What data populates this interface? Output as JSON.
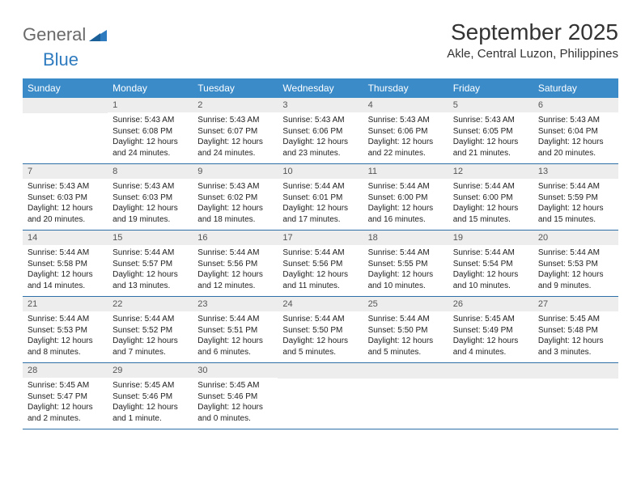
{
  "logo": {
    "general": "General",
    "blue": "Blue"
  },
  "title": "September 2025",
  "location": "Akle, Central Luzon, Philippines",
  "colors": {
    "header_bg": "#3b8bc9",
    "header_text": "#ffffff",
    "daynum_bg": "#ededed",
    "week_border": "#2f6fa8",
    "logo_gray": "#6a6a6a",
    "logo_blue": "#2f7bbf"
  },
  "day_names": [
    "Sunday",
    "Monday",
    "Tuesday",
    "Wednesday",
    "Thursday",
    "Friday",
    "Saturday"
  ],
  "weeks": [
    [
      {
        "empty": true
      },
      {
        "day": "1",
        "sunrise": "Sunrise: 5:43 AM",
        "sunset": "Sunset: 6:08 PM",
        "dl1": "Daylight: 12 hours",
        "dl2": "and 24 minutes."
      },
      {
        "day": "2",
        "sunrise": "Sunrise: 5:43 AM",
        "sunset": "Sunset: 6:07 PM",
        "dl1": "Daylight: 12 hours",
        "dl2": "and 24 minutes."
      },
      {
        "day": "3",
        "sunrise": "Sunrise: 5:43 AM",
        "sunset": "Sunset: 6:06 PM",
        "dl1": "Daylight: 12 hours",
        "dl2": "and 23 minutes."
      },
      {
        "day": "4",
        "sunrise": "Sunrise: 5:43 AM",
        "sunset": "Sunset: 6:06 PM",
        "dl1": "Daylight: 12 hours",
        "dl2": "and 22 minutes."
      },
      {
        "day": "5",
        "sunrise": "Sunrise: 5:43 AM",
        "sunset": "Sunset: 6:05 PM",
        "dl1": "Daylight: 12 hours",
        "dl2": "and 21 minutes."
      },
      {
        "day": "6",
        "sunrise": "Sunrise: 5:43 AM",
        "sunset": "Sunset: 6:04 PM",
        "dl1": "Daylight: 12 hours",
        "dl2": "and 20 minutes."
      }
    ],
    [
      {
        "day": "7",
        "sunrise": "Sunrise: 5:43 AM",
        "sunset": "Sunset: 6:03 PM",
        "dl1": "Daylight: 12 hours",
        "dl2": "and 20 minutes."
      },
      {
        "day": "8",
        "sunrise": "Sunrise: 5:43 AM",
        "sunset": "Sunset: 6:03 PM",
        "dl1": "Daylight: 12 hours",
        "dl2": "and 19 minutes."
      },
      {
        "day": "9",
        "sunrise": "Sunrise: 5:43 AM",
        "sunset": "Sunset: 6:02 PM",
        "dl1": "Daylight: 12 hours",
        "dl2": "and 18 minutes."
      },
      {
        "day": "10",
        "sunrise": "Sunrise: 5:44 AM",
        "sunset": "Sunset: 6:01 PM",
        "dl1": "Daylight: 12 hours",
        "dl2": "and 17 minutes."
      },
      {
        "day": "11",
        "sunrise": "Sunrise: 5:44 AM",
        "sunset": "Sunset: 6:00 PM",
        "dl1": "Daylight: 12 hours",
        "dl2": "and 16 minutes."
      },
      {
        "day": "12",
        "sunrise": "Sunrise: 5:44 AM",
        "sunset": "Sunset: 6:00 PM",
        "dl1": "Daylight: 12 hours",
        "dl2": "and 15 minutes."
      },
      {
        "day": "13",
        "sunrise": "Sunrise: 5:44 AM",
        "sunset": "Sunset: 5:59 PM",
        "dl1": "Daylight: 12 hours",
        "dl2": "and 15 minutes."
      }
    ],
    [
      {
        "day": "14",
        "sunrise": "Sunrise: 5:44 AM",
        "sunset": "Sunset: 5:58 PM",
        "dl1": "Daylight: 12 hours",
        "dl2": "and 14 minutes."
      },
      {
        "day": "15",
        "sunrise": "Sunrise: 5:44 AM",
        "sunset": "Sunset: 5:57 PM",
        "dl1": "Daylight: 12 hours",
        "dl2": "and 13 minutes."
      },
      {
        "day": "16",
        "sunrise": "Sunrise: 5:44 AM",
        "sunset": "Sunset: 5:56 PM",
        "dl1": "Daylight: 12 hours",
        "dl2": "and 12 minutes."
      },
      {
        "day": "17",
        "sunrise": "Sunrise: 5:44 AM",
        "sunset": "Sunset: 5:56 PM",
        "dl1": "Daylight: 12 hours",
        "dl2": "and 11 minutes."
      },
      {
        "day": "18",
        "sunrise": "Sunrise: 5:44 AM",
        "sunset": "Sunset: 5:55 PM",
        "dl1": "Daylight: 12 hours",
        "dl2": "and 10 minutes."
      },
      {
        "day": "19",
        "sunrise": "Sunrise: 5:44 AM",
        "sunset": "Sunset: 5:54 PM",
        "dl1": "Daylight: 12 hours",
        "dl2": "and 10 minutes."
      },
      {
        "day": "20",
        "sunrise": "Sunrise: 5:44 AM",
        "sunset": "Sunset: 5:53 PM",
        "dl1": "Daylight: 12 hours",
        "dl2": "and 9 minutes."
      }
    ],
    [
      {
        "day": "21",
        "sunrise": "Sunrise: 5:44 AM",
        "sunset": "Sunset: 5:53 PM",
        "dl1": "Daylight: 12 hours",
        "dl2": "and 8 minutes."
      },
      {
        "day": "22",
        "sunrise": "Sunrise: 5:44 AM",
        "sunset": "Sunset: 5:52 PM",
        "dl1": "Daylight: 12 hours",
        "dl2": "and 7 minutes."
      },
      {
        "day": "23",
        "sunrise": "Sunrise: 5:44 AM",
        "sunset": "Sunset: 5:51 PM",
        "dl1": "Daylight: 12 hours",
        "dl2": "and 6 minutes."
      },
      {
        "day": "24",
        "sunrise": "Sunrise: 5:44 AM",
        "sunset": "Sunset: 5:50 PM",
        "dl1": "Daylight: 12 hours",
        "dl2": "and 5 minutes."
      },
      {
        "day": "25",
        "sunrise": "Sunrise: 5:44 AM",
        "sunset": "Sunset: 5:50 PM",
        "dl1": "Daylight: 12 hours",
        "dl2": "and 5 minutes."
      },
      {
        "day": "26",
        "sunrise": "Sunrise: 5:45 AM",
        "sunset": "Sunset: 5:49 PM",
        "dl1": "Daylight: 12 hours",
        "dl2": "and 4 minutes."
      },
      {
        "day": "27",
        "sunrise": "Sunrise: 5:45 AM",
        "sunset": "Sunset: 5:48 PM",
        "dl1": "Daylight: 12 hours",
        "dl2": "and 3 minutes."
      }
    ],
    [
      {
        "day": "28",
        "sunrise": "Sunrise: 5:45 AM",
        "sunset": "Sunset: 5:47 PM",
        "dl1": "Daylight: 12 hours",
        "dl2": "and 2 minutes."
      },
      {
        "day": "29",
        "sunrise": "Sunrise: 5:45 AM",
        "sunset": "Sunset: 5:46 PM",
        "dl1": "Daylight: 12 hours",
        "dl2": "and 1 minute."
      },
      {
        "day": "30",
        "sunrise": "Sunrise: 5:45 AM",
        "sunset": "Sunset: 5:46 PM",
        "dl1": "Daylight: 12 hours",
        "dl2": "and 0 minutes."
      },
      {
        "empty": true
      },
      {
        "empty": true
      },
      {
        "empty": true
      },
      {
        "empty": true
      }
    ]
  ]
}
